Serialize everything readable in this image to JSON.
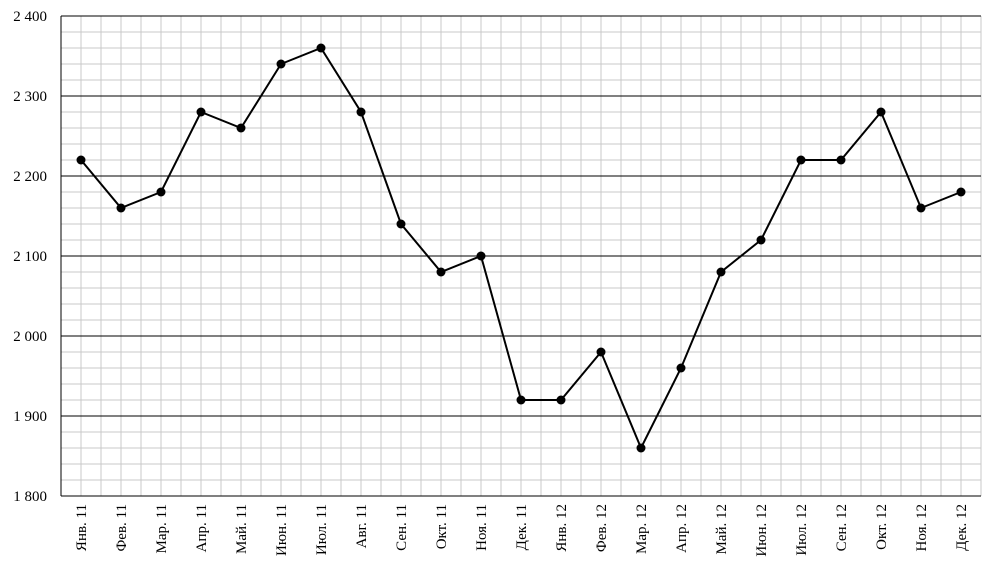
{
  "chart_data": {
    "type": "line",
    "categories": [
      "Янв. 11",
      "Фев. 11",
      "Мар. 11",
      "Апр. 11",
      "Май. 11",
      "Июн. 11",
      "Июл. 11",
      "Авг. 11",
      "Сен. 11",
      "Окт. 11",
      "Ноя. 11",
      "Дек. 11",
      "Янв. 12",
      "Фев. 12",
      "Мар. 12",
      "Апр. 12",
      "Май. 12",
      "Июн. 12",
      "Июл. 12",
      "Сен. 12",
      "Окт. 12",
      "Ноя. 12",
      "Дек. 12"
    ],
    "values": [
      2220,
      2160,
      2180,
      2280,
      2260,
      2340,
      2360,
      2280,
      2140,
      2080,
      2100,
      1920,
      1920,
      1980,
      1860,
      1960,
      2080,
      2120,
      2220,
      2220,
      2280,
      2160,
      2180
    ],
    "color": "#000000",
    "ylim": [
      1800,
      2400
    ],
    "yticks": [
      {
        "value": 1800,
        "label": "1 800"
      },
      {
        "value": 1900,
        "label": "1 900"
      },
      {
        "value": 2000,
        "label": "2 000"
      },
      {
        "value": 2100,
        "label": "2 100"
      },
      {
        "value": 2200,
        "label": "2 200"
      },
      {
        "value": 2300,
        "label": "2 300"
      },
      {
        "value": 2400,
        "label": "2 400"
      }
    ],
    "grid": true
  }
}
